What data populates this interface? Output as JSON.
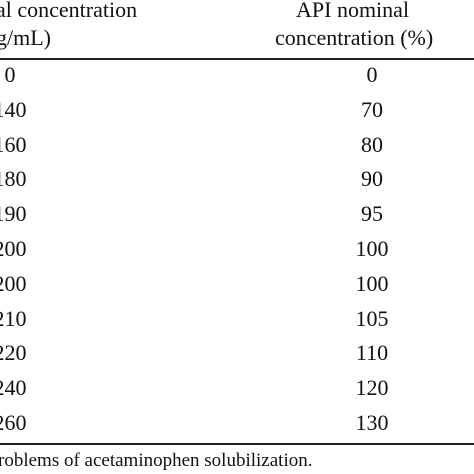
{
  "table": {
    "header_left_line1": "al concentration",
    "header_left_line2": "g/mL)",
    "header_right_line1": "API nominal",
    "header_right_line2": "concentration (%)",
    "rows": [
      {
        "left": "0",
        "right": "0"
      },
      {
        "left": "140",
        "right": "70"
      },
      {
        "left": "160",
        "right": "80"
      },
      {
        "left": "180",
        "right": "90"
      },
      {
        "left": "190",
        "right": "95"
      },
      {
        "left": "200",
        "right": "100"
      },
      {
        "left": "200",
        "right": "100"
      },
      {
        "left": "210",
        "right": "105"
      },
      {
        "left": "220",
        "right": "110"
      },
      {
        "left": "240",
        "right": "120"
      },
      {
        "left": "260",
        "right": "130"
      }
    ]
  },
  "footnote": "roblems of acetaminophen solubilization."
}
